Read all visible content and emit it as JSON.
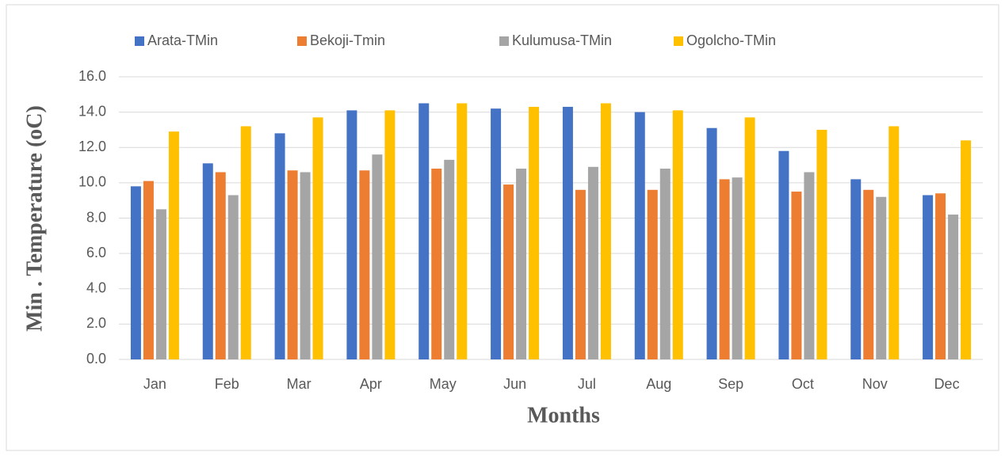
{
  "chart_data": {
    "type": "bar",
    "y_label": "Min . Temperature (oC)",
    "x_label": "Months",
    "categories": [
      "Jan",
      "Feb",
      "Mar",
      "Apr",
      "May",
      "Jun",
      "Jul",
      "Aug",
      "Sep",
      "Oct",
      "Nov",
      "Dec"
    ],
    "series": [
      {
        "name": "Arata-TMin",
        "color": "#4472c4",
        "values": [
          9.8,
          11.1,
          12.8,
          14.1,
          14.5,
          14.2,
          14.3,
          14.0,
          13.1,
          11.8,
          10.2,
          9.3
        ]
      },
      {
        "name": "Bekoji-Tmin",
        "color": "#ed7d31",
        "values": [
          10.1,
          10.6,
          10.7,
          10.7,
          10.8,
          9.9,
          9.6,
          9.6,
          10.2,
          9.5,
          9.6,
          9.4
        ]
      },
      {
        "name": "Kulumusa-TMin",
        "color": "#a5a5a5",
        "values": [
          8.5,
          9.3,
          10.6,
          11.6,
          11.3,
          10.8,
          10.9,
          10.8,
          10.3,
          10.6,
          9.2,
          8.2
        ]
      },
      {
        "name": "Ogolcho-TMin",
        "color": "#ffc000",
        "values": [
          12.9,
          13.2,
          13.7,
          14.1,
          14.5,
          14.3,
          14.5,
          14.1,
          13.7,
          13.0,
          13.2,
          12.4
        ]
      }
    ],
    "ylim": [
      0,
      16
    ],
    "yticks": [
      {
        "value": 0,
        "label": "0.0"
      },
      {
        "value": 2,
        "label": "2.0"
      },
      {
        "value": 4,
        "label": "4.0"
      },
      {
        "value": 6,
        "label": "6.0"
      },
      {
        "value": 8,
        "label": "8.0"
      },
      {
        "value": 10,
        "label": "10.0"
      },
      {
        "value": 12,
        "label": "12.0"
      },
      {
        "value": 14,
        "label": "14.0"
      },
      {
        "value": 16,
        "label": "16.0"
      }
    ],
    "grid": true,
    "legend": "top"
  }
}
